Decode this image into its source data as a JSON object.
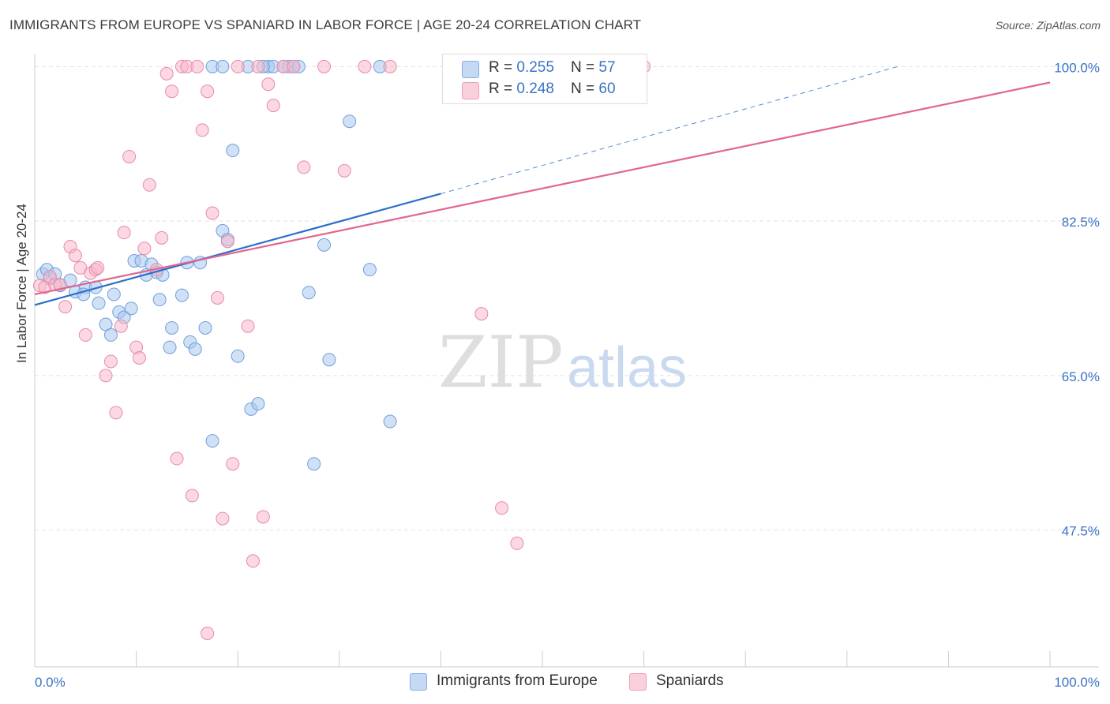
{
  "header": {
    "title": "IMMIGRANTS FROM EUROPE VS SPANIARD IN LABOR FORCE | AGE 20-24 CORRELATION CHART",
    "source": "Source: ZipAtlas.com"
  },
  "watermark": {
    "zip": "ZIP",
    "atlas": "atlas"
  },
  "legend": {
    "rows": [
      {
        "r_label": "R = ",
        "r_value": "0.255",
        "n_label": "N = ",
        "n_value": "57",
        "color": "#a9c8ef"
      },
      {
        "r_label": "R = ",
        "r_value": "0.248",
        "n_label": "N = ",
        "n_value": "60",
        "color": "#f7b8cb"
      }
    ]
  },
  "bottom_legend": [
    {
      "label": "Immigrants from Europe",
      "color": "#a9c8ef"
    },
    {
      "label": "Spaniards",
      "color": "#f7b8cb"
    }
  ],
  "chart_data": {
    "type": "scatter",
    "xlabel": "",
    "ylabel": "In Labor Force | Age 20-24",
    "xlim": [
      0,
      100
    ],
    "ylim": [
      32,
      102
    ],
    "x_tick_labels": [
      "0.0%",
      "100.0%"
    ],
    "y_ticks": [
      47.5,
      65.0,
      82.5,
      100.0
    ],
    "y_tick_labels": [
      "47.5%",
      "65.0%",
      "82.5%",
      "100.0%"
    ],
    "grid": true,
    "series": [
      {
        "name": "Immigrants from Europe",
        "color": "#a9c8ef",
        "stroke": "#6f9fdc",
        "trend": {
          "x": [
            0,
            40
          ],
          "y": [
            73.0,
            85.6
          ],
          "dash_to": [
            85,
            100.0
          ],
          "color": "#2c6fcb"
        },
        "points": [
          [
            0.8,
            76.5
          ],
          [
            1.2,
            77.0
          ],
          [
            1.5,
            76.0
          ],
          [
            2.0,
            76.5
          ],
          [
            2.5,
            75.2
          ],
          [
            3.5,
            75.8
          ],
          [
            4.0,
            74.5
          ],
          [
            5.0,
            75.0
          ],
          [
            4.8,
            74.2
          ],
          [
            6.0,
            75.0
          ],
          [
            6.3,
            73.2
          ],
          [
            7.0,
            70.8
          ],
          [
            7.5,
            69.6
          ],
          [
            7.8,
            74.2
          ],
          [
            8.3,
            72.2
          ],
          [
            8.8,
            71.6
          ],
          [
            9.5,
            72.6
          ],
          [
            9.8,
            78.0
          ],
          [
            10.5,
            78.0
          ],
          [
            11.0,
            76.4
          ],
          [
            11.5,
            77.6
          ],
          [
            12.0,
            76.7
          ],
          [
            12.3,
            73.6
          ],
          [
            12.6,
            76.4
          ],
          [
            13.3,
            68.2
          ],
          [
            13.5,
            70.4
          ],
          [
            14.5,
            74.1
          ],
          [
            15.0,
            77.8
          ],
          [
            15.3,
            68.8
          ],
          [
            15.8,
            68.0
          ],
          [
            16.3,
            77.8
          ],
          [
            16.8,
            70.4
          ],
          [
            17.5,
            57.6
          ],
          [
            18.5,
            81.4
          ],
          [
            19.0,
            80.4
          ],
          [
            19.5,
            90.5
          ],
          [
            20.0,
            67.2
          ],
          [
            21.3,
            61.2
          ],
          [
            22.0,
            61.8
          ],
          [
            23.0,
            100.0
          ],
          [
            23.5,
            100.0
          ],
          [
            25.0,
            100.0
          ],
          [
            25.5,
            100.0
          ],
          [
            27.0,
            74.4
          ],
          [
            27.5,
            55.0
          ],
          [
            28.5,
            79.8
          ],
          [
            29.0,
            66.8
          ],
          [
            31.0,
            93.8
          ],
          [
            33.0,
            77.0
          ],
          [
            34.0,
            100.0
          ],
          [
            35.0,
            59.8
          ],
          [
            17.5,
            100.0
          ],
          [
            18.5,
            100.0
          ],
          [
            21.0,
            100.0
          ],
          [
            24.5,
            100.0
          ],
          [
            26.0,
            100.0
          ],
          [
            22.5,
            100.0
          ]
        ]
      },
      {
        "name": "Spaniards",
        "color": "#f7b8cb",
        "stroke": "#e98aa8",
        "trend": {
          "x": [
            0,
            100
          ],
          "y": [
            74.2,
            98.2
          ],
          "color": "#e06690"
        },
        "points": [
          [
            0.5,
            75.2
          ],
          [
            1.0,
            75.0
          ],
          [
            1.5,
            76.2
          ],
          [
            2.0,
            75.3
          ],
          [
            2.5,
            75.3
          ],
          [
            3.0,
            72.8
          ],
          [
            3.5,
            79.6
          ],
          [
            4.0,
            78.6
          ],
          [
            4.5,
            77.2
          ],
          [
            5.0,
            69.6
          ],
          [
            5.5,
            76.6
          ],
          [
            6.0,
            77.0
          ],
          [
            6.2,
            77.2
          ],
          [
            7.0,
            65.0
          ],
          [
            7.5,
            66.6
          ],
          [
            8.0,
            60.8
          ],
          [
            8.5,
            70.6
          ],
          [
            8.8,
            81.2
          ],
          [
            9.3,
            89.8
          ],
          [
            10.0,
            68.2
          ],
          [
            10.3,
            67.0
          ],
          [
            10.8,
            79.4
          ],
          [
            11.3,
            86.6
          ],
          [
            12.0,
            77.0
          ],
          [
            12.5,
            80.6
          ],
          [
            13.0,
            99.2
          ],
          [
            13.5,
            97.2
          ],
          [
            14.0,
            55.6
          ],
          [
            14.5,
            100.0
          ],
          [
            15.0,
            100.0
          ],
          [
            15.5,
            51.4
          ],
          [
            16.0,
            100.0
          ],
          [
            16.5,
            92.8
          ],
          [
            17.0,
            97.2
          ],
          [
            17.5,
            83.4
          ],
          [
            18.0,
            73.8
          ],
          [
            18.5,
            48.8
          ],
          [
            19.0,
            80.2
          ],
          [
            19.5,
            55.0
          ],
          [
            20.0,
            100.0
          ],
          [
            21.0,
            70.6
          ],
          [
            21.5,
            44.0
          ],
          [
            22.0,
            100.0
          ],
          [
            22.5,
            49.0
          ],
          [
            23.0,
            98.0
          ],
          [
            23.5,
            95.6
          ],
          [
            24.5,
            100.0
          ],
          [
            25.5,
            100.0
          ],
          [
            26.5,
            88.6
          ],
          [
            28.5,
            100.0
          ],
          [
            30.5,
            88.2
          ],
          [
            32.5,
            100.0
          ],
          [
            35.0,
            100.0
          ],
          [
            44.0,
            72.0
          ],
          [
            44.0,
            100.0
          ],
          [
            46.0,
            50.0
          ],
          [
            47.5,
            46.0
          ],
          [
            52.0,
            100.0
          ],
          [
            60.0,
            100.0
          ],
          [
            17.0,
            35.8
          ]
        ]
      }
    ]
  }
}
